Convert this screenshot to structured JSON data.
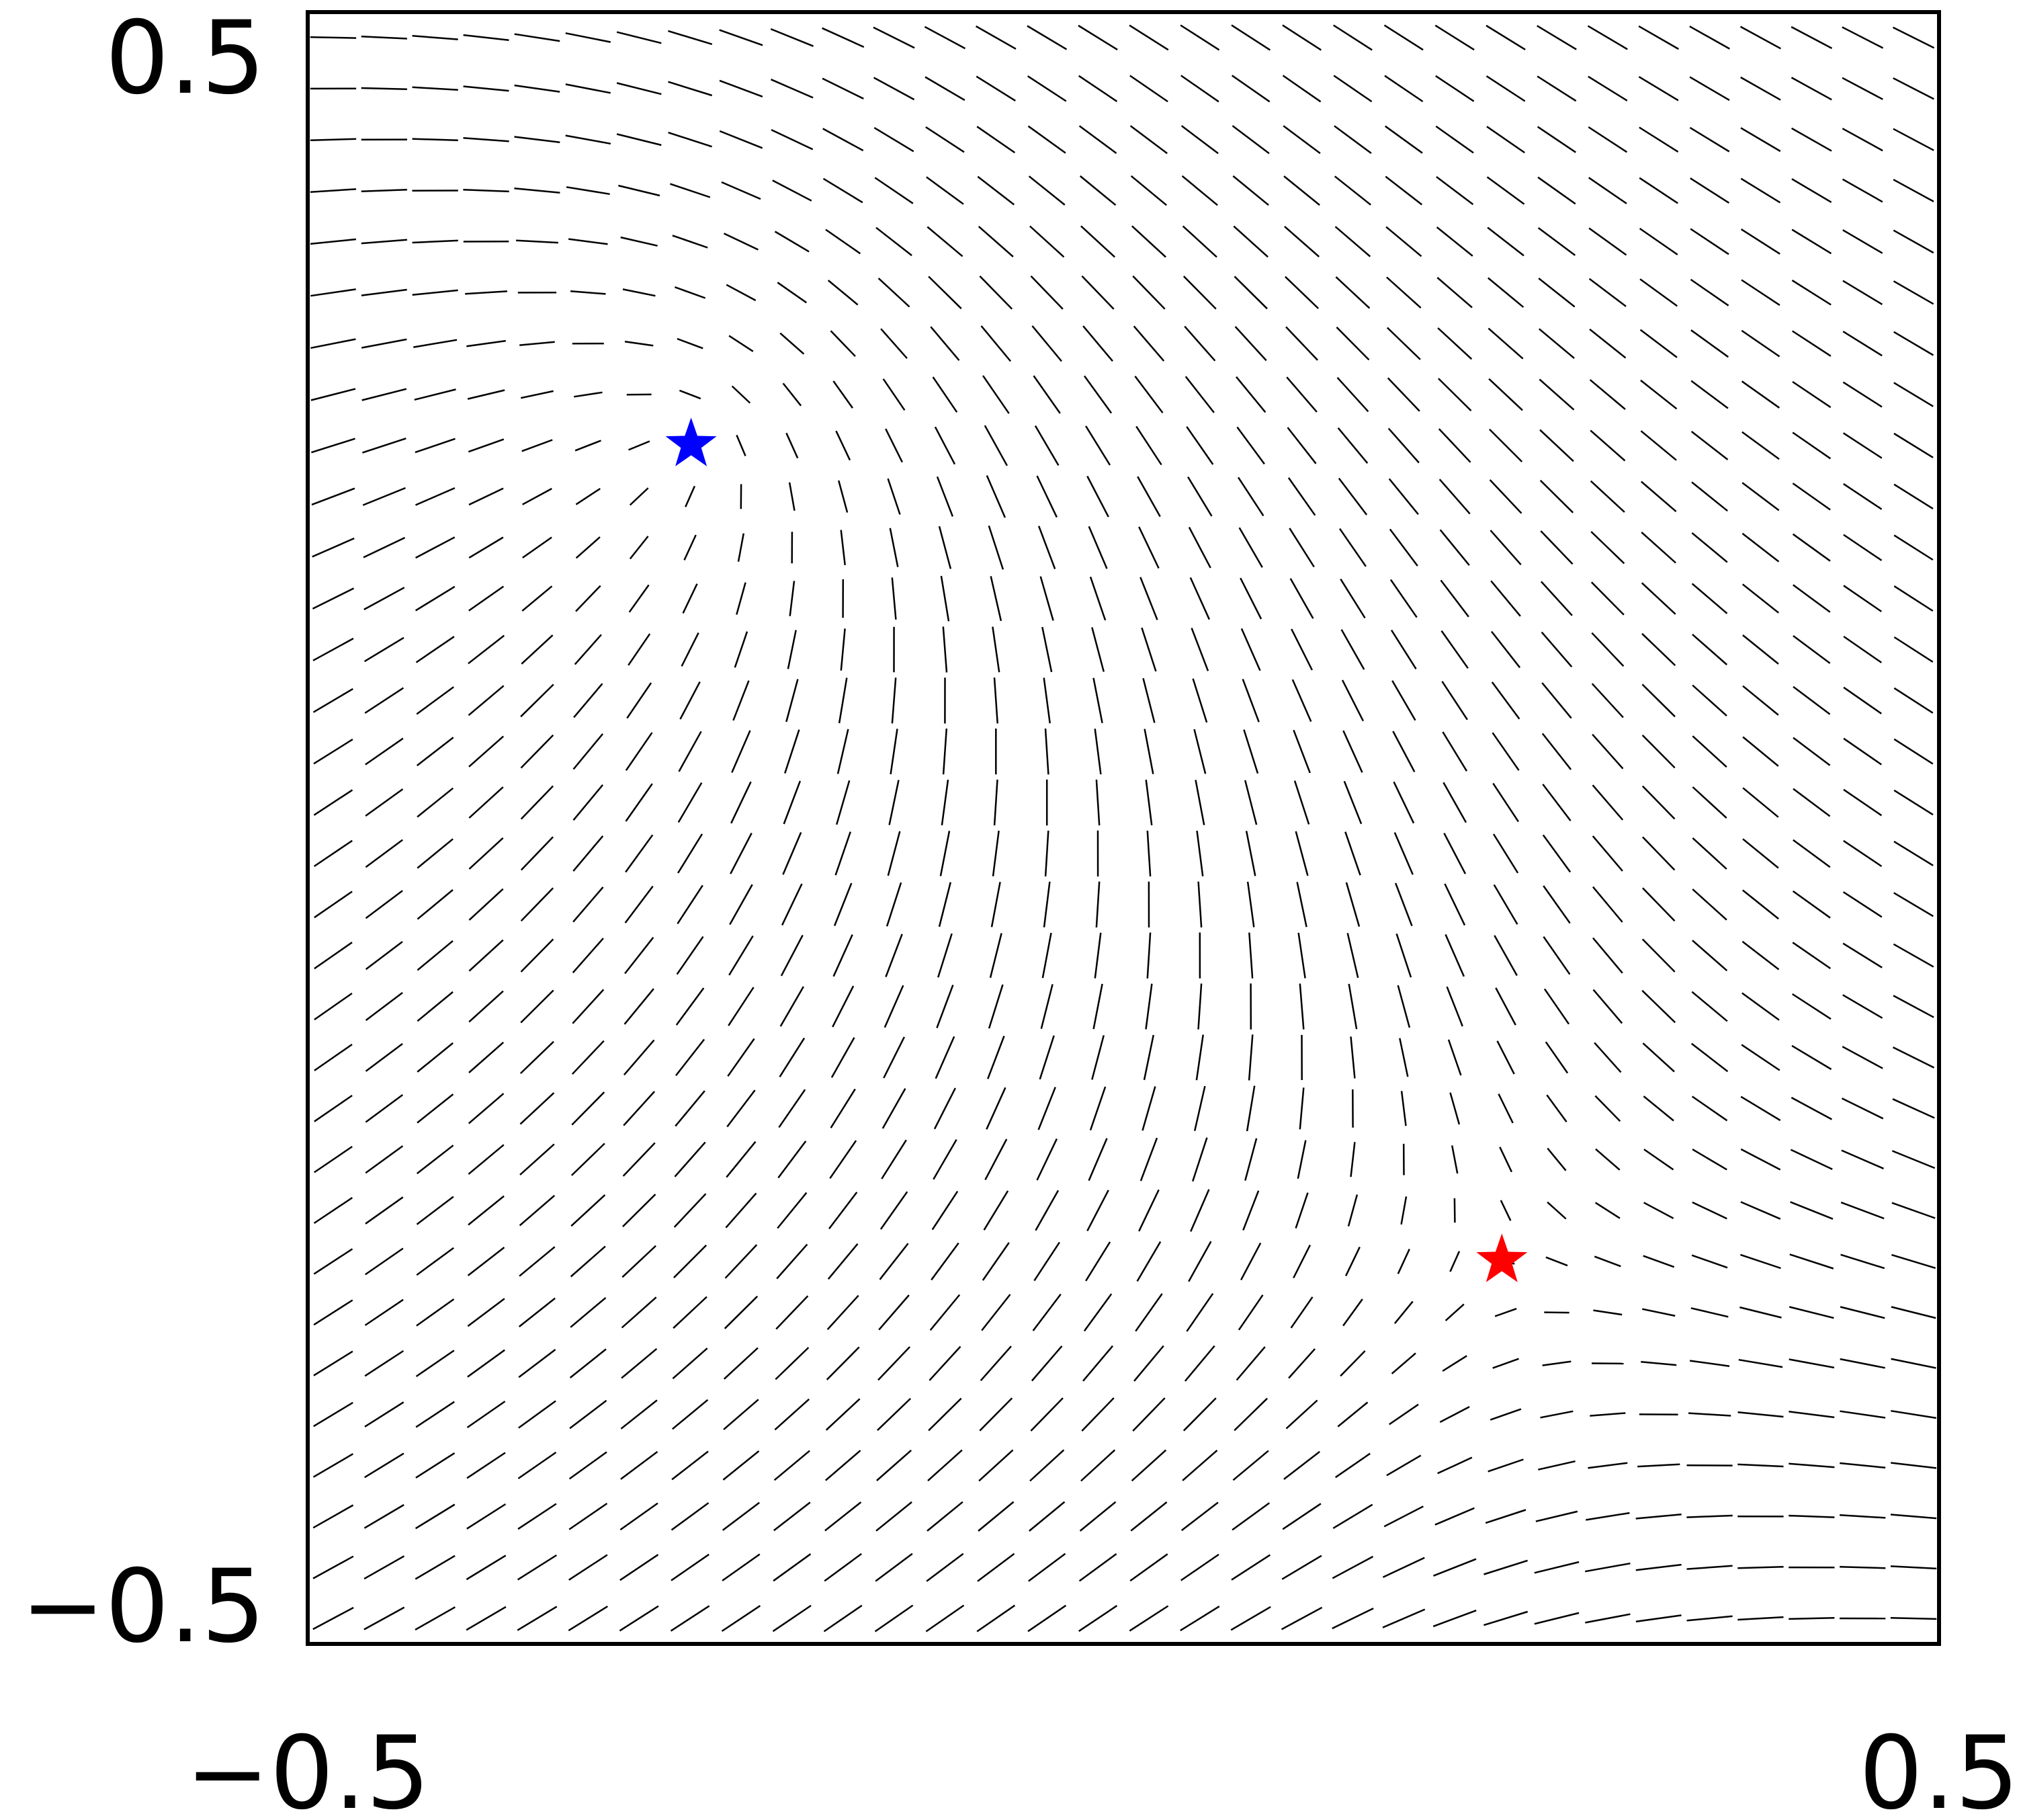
{
  "chart_data": {
    "type": "vector-field",
    "title": "",
    "xlabel": "",
    "ylabel": "",
    "xlim": [
      -0.5,
      0.5
    ],
    "ylim": [
      -0.5,
      0.5
    ],
    "x_tick_labels": [
      "−0.5",
      "0.5"
    ],
    "y_tick_labels": [
      "0.5",
      "−0.5"
    ],
    "x_ticks": [
      -0.5,
      0.5
    ],
    "y_ticks": [
      0.5,
      -0.5
    ],
    "grid": false,
    "field": {
      "kind": "director (headless line segments)",
      "grid_n": 32,
      "sources": [
        {
          "name": "blue-star",
          "x": -0.265,
          "y": 0.235,
          "color": "#0000ff",
          "sign": 1
        },
        {
          "name": "red-star",
          "x": 0.232,
          "y": -0.265,
          "color": "#ff0000",
          "sign": -1
        }
      ]
    }
  }
}
